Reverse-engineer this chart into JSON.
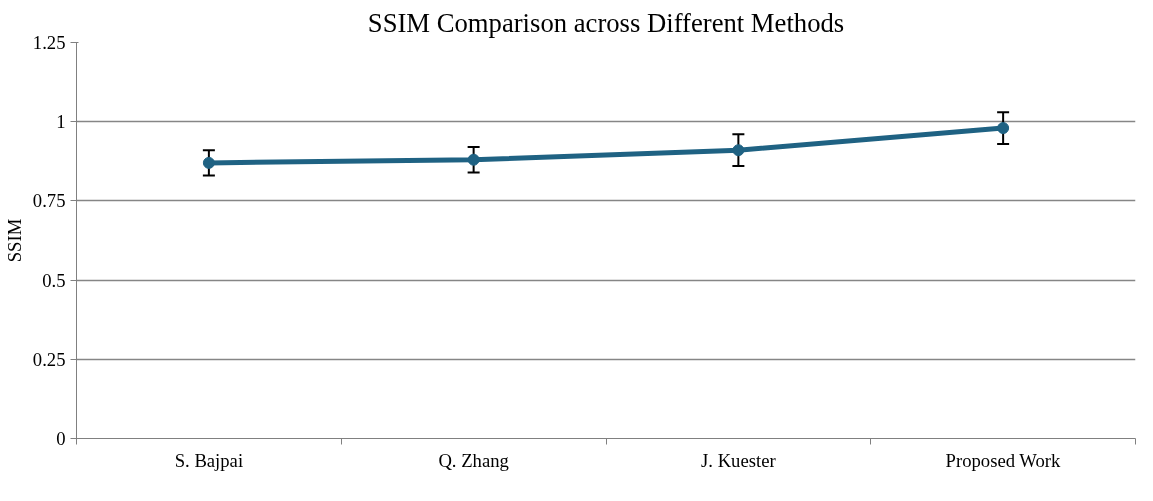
{
  "chart_data": {
    "type": "line",
    "title": "SSIM Comparison across Different Methods",
    "ylabel": "SSIM",
    "categories": [
      "S. Bajpai",
      "Q. Zhang",
      "J. Kuester",
      "Proposed Work"
    ],
    "series": [
      {
        "color": "#1f6283",
        "values": [
          0.87,
          0.88,
          0.91,
          0.98
        ],
        "errors": [
          0.04,
          0.04,
          0.05,
          0.05
        ]
      }
    ],
    "ylim": [
      0,
      1.25
    ],
    "yticks": [
      0,
      0.25,
      0.5,
      0.75,
      1,
      1.25
    ],
    "grid": "y",
    "marker": "circle",
    "line_style": "solid"
  }
}
